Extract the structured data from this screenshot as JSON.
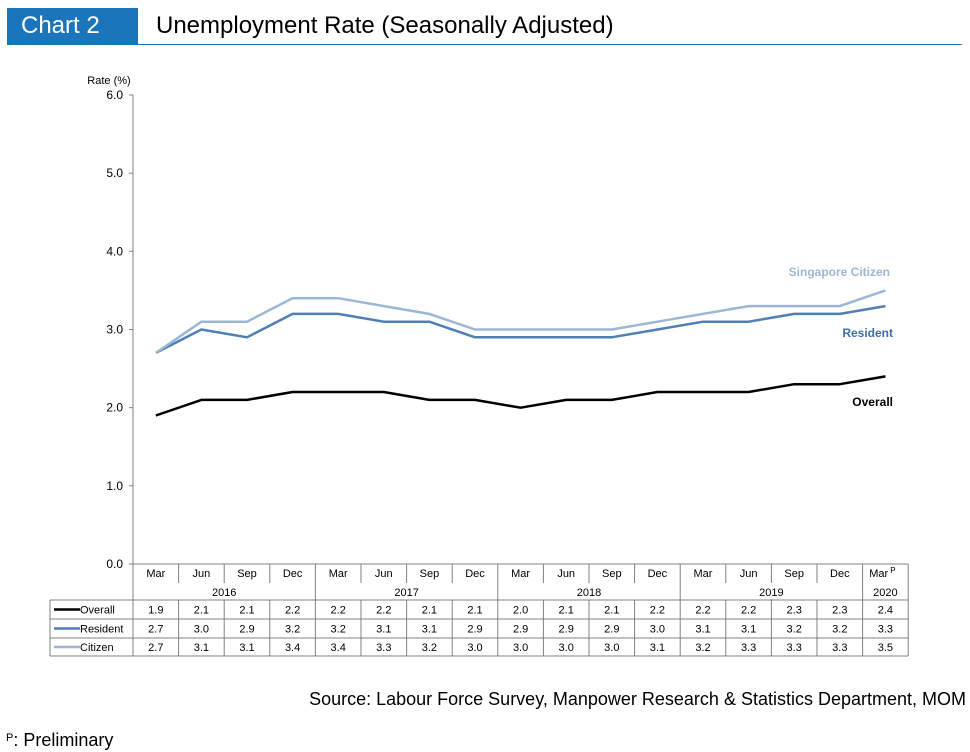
{
  "header": {
    "badge": "Chart 2",
    "title": "Unemployment Rate (Seasonally Adjusted)"
  },
  "chart_data": {
    "type": "line",
    "ylabel": "Rate (%)",
    "ylim": [
      0,
      6
    ],
    "yticks": [
      "0.0",
      "1.0",
      "2.0",
      "3.0",
      "4.0",
      "5.0",
      "6.0"
    ],
    "quarters": [
      "Mar",
      "Jun",
      "Sep",
      "Dec",
      "Mar",
      "Jun",
      "Sep",
      "Dec",
      "Mar",
      "Jun",
      "Sep",
      "Dec",
      "Mar",
      "Jun",
      "Sep",
      "Dec",
      "Mar"
    ],
    "preliminary_mark": "P",
    "years": [
      {
        "label": "2016",
        "start": 0,
        "end": 3
      },
      {
        "label": "2017",
        "start": 4,
        "end": 7
      },
      {
        "label": "2018",
        "start": 8,
        "end": 11
      },
      {
        "label": "2019",
        "start": 12,
        "end": 15
      },
      {
        "label": "2020",
        "start": 16,
        "end": 16
      }
    ],
    "series": [
      {
        "name": "Overall",
        "table_label": "Overall",
        "color": "#000000",
        "values": [
          1.9,
          2.1,
          2.1,
          2.2,
          2.2,
          2.2,
          2.1,
          2.1,
          2.0,
          2.1,
          2.1,
          2.2,
          2.2,
          2.2,
          2.3,
          2.3,
          2.4
        ]
      },
      {
        "name": "Resident",
        "table_label": "Resident",
        "color": "#4f7fb4",
        "values": [
          2.7,
          3.0,
          2.9,
          3.2,
          3.2,
          3.1,
          3.1,
          2.9,
          2.9,
          2.9,
          2.9,
          3.0,
          3.1,
          3.1,
          3.2,
          3.2,
          3.3
        ]
      },
      {
        "name": "Singapore Citizen",
        "table_label": "Citizen",
        "color": "#9cb7d6",
        "values": [
          2.7,
          3.1,
          3.1,
          3.4,
          3.4,
          3.3,
          3.2,
          3.0,
          3.0,
          3.0,
          3.0,
          3.1,
          3.2,
          3.3,
          3.3,
          3.3,
          3.5
        ]
      }
    ]
  },
  "footer": {
    "source": "Source: Labour Force Survey, Manpower Research & Statistics Department, MOM",
    "footnote_mark": "P",
    "footnote_text": ": Preliminary"
  }
}
